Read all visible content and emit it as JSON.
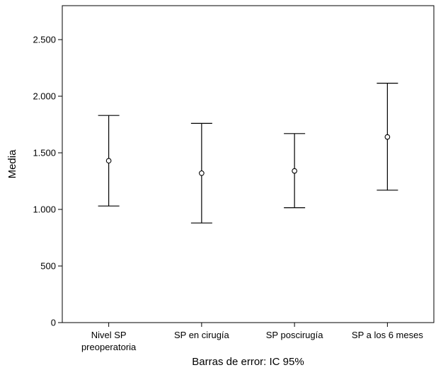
{
  "chart_data": {
    "type": "errorbar",
    "categories": [
      [
        "Nivel SP",
        "preoperatoria"
      ],
      [
        "SP en cirugía"
      ],
      [
        "SP poscirugía"
      ],
      [
        "SP a los 6 meses"
      ]
    ],
    "series": [
      {
        "means": [
          1430,
          1320,
          1340,
          1640
        ],
        "lower": [
          1030,
          880,
          1015,
          1170
        ],
        "upper": [
          1830,
          1760,
          1670,
          2115
        ]
      }
    ],
    "ylabel": "Media",
    "xlabel": "Barras de error: IC 95%",
    "ylim": [
      0,
      2800
    ],
    "yticks": [
      0,
      500,
      1000,
      1500,
      2000,
      2500
    ],
    "ytick_labels": [
      "0",
      "500",
      "1.000",
      "1.500",
      "2.000",
      "2.500"
    ],
    "grid": false,
    "legend": "none"
  }
}
